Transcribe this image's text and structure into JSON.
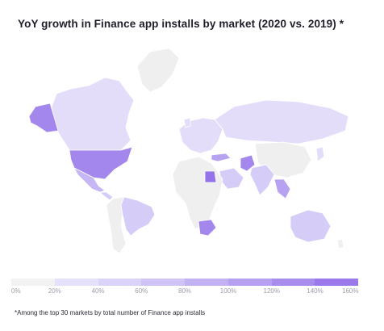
{
  "title": "YoY growth in Finance app installs by market (2020 vs. 2019) *",
  "footnote": "*Among the top 30 markets by total number of Finance app installs",
  "legend": {
    "ticks": [
      "0%",
      "20%",
      "40%",
      "60%",
      "80%",
      "100%",
      "120%",
      "140%",
      "160%"
    ],
    "colors": [
      "#f2f2f2",
      "#e6e1fb",
      "#dcd3f9",
      "#d0c3f6",
      "#c3b2f3",
      "#b6a0f1",
      "#a98ded",
      "#9b79ea"
    ]
  },
  "palette": {
    "no_data": "#efefef",
    "bin_20_40": "#e3ddfa",
    "bin_40_60": "#d6ccf8",
    "bin_60_80": "#c6b6f4",
    "bin_80_100": "#b7a2f1",
    "bin_120_140": "#a487ec",
    "bin_140_160": "#9472e8"
  },
  "map_regions": [
    {
      "name": "Alaska",
      "fill": "bin_120_140"
    },
    {
      "name": "Canada",
      "fill": "bin_20_40"
    },
    {
      "name": "United States",
      "fill": "bin_120_140"
    },
    {
      "name": "Mexico",
      "fill": "bin_60_80"
    },
    {
      "name": "Central America",
      "fill": "bin_40_60"
    },
    {
      "name": "Greenland",
      "fill": "no_data"
    },
    {
      "name": "Brazil",
      "fill": "bin_40_60"
    },
    {
      "name": "South America (other)",
      "fill": "no_data"
    },
    {
      "name": "United Kingdom",
      "fill": "bin_20_40"
    },
    {
      "name": "Europe",
      "fill": "bin_20_40"
    },
    {
      "name": "Russia",
      "fill": "bin_20_40"
    },
    {
      "name": "Turkey",
      "fill": "bin_80_100"
    },
    {
      "name": "Egypt",
      "fill": "bin_140_160"
    },
    {
      "name": "Saudi Arabia",
      "fill": "bin_40_60"
    },
    {
      "name": "Pakistan",
      "fill": "bin_120_140"
    },
    {
      "name": "India",
      "fill": "bin_40_60"
    },
    {
      "name": "Southeast Asia",
      "fill": "bin_80_100"
    },
    {
      "name": "China",
      "fill": "no_data"
    },
    {
      "name": "Japan",
      "fill": "bin_20_40"
    },
    {
      "name": "South Africa",
      "fill": "bin_120_140"
    },
    {
      "name": "Africa (other)",
      "fill": "no_data"
    },
    {
      "name": "Australia",
      "fill": "bin_40_60"
    },
    {
      "name": "New Zealand",
      "fill": "no_data"
    }
  ]
}
